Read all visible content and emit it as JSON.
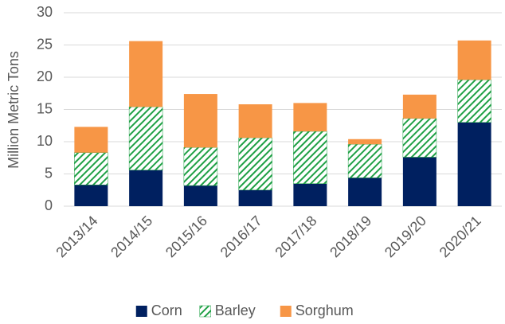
{
  "chart_data": {
    "type": "stacked_bar",
    "ylabel": "Million Metric Tons",
    "categories": [
      "2013/14",
      "2014/15",
      "2015/16",
      "2016/17",
      "2017/18",
      "2018/19",
      "2019/20",
      "2020/21"
    ],
    "series": [
      {
        "name": "Corn",
        "color": "#002060",
        "pattern": "solid",
        "values": [
          3.3,
          5.6,
          3.2,
          2.5,
          3.5,
          4.4,
          7.6,
          13.0
        ]
      },
      {
        "name": "Barley",
        "color": "#1fa045",
        "pattern": "hatch",
        "values": [
          5.0,
          9.8,
          5.9,
          8.1,
          8.1,
          5.2,
          6.0,
          6.6
        ]
      },
      {
        "name": "Sorghum",
        "color": "#f79646",
        "pattern": "solid",
        "values": [
          4.0,
          10.2,
          8.3,
          5.2,
          4.4,
          0.8,
          3.7,
          6.1
        ]
      }
    ],
    "ylim": [
      0,
      30
    ],
    "yticks": [
      0,
      5,
      10,
      15,
      20,
      25,
      30
    ],
    "grid": true,
    "legend": "bottom"
  }
}
